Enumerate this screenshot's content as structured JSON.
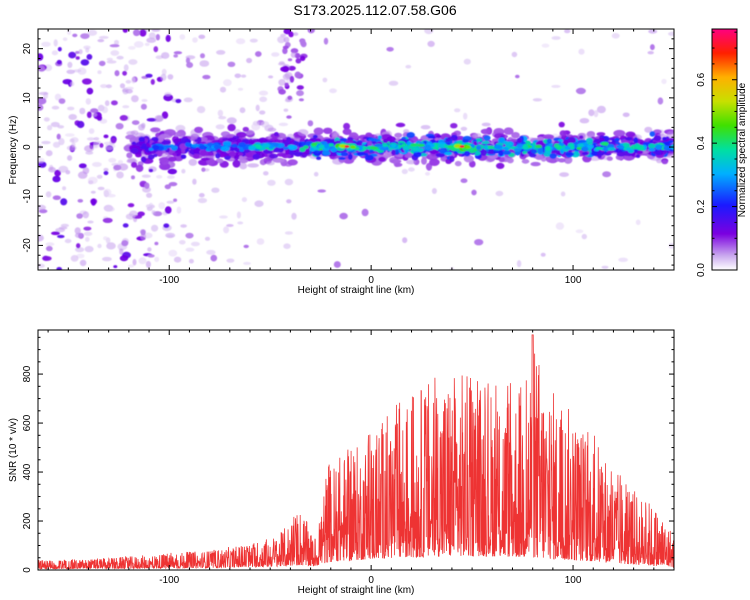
{
  "title": "S173.2025.112.07.58.G06",
  "chart_data": [
    {
      "type": "heatmap",
      "xlabel": "Height of straight line (km)",
      "ylabel": "Frequency (Hz)",
      "xlim": [
        -165,
        150
      ],
      "ylim": [
        -25,
        24
      ],
      "xticks": [
        -100,
        0,
        100
      ],
      "yticks": [
        -20,
        -10,
        0,
        10,
        20
      ],
      "colorbar": {
        "label": "Normalized spectral amplitude",
        "range": [
          0,
          0.76
        ],
        "ticks": [
          0.0,
          0.2,
          0.4,
          0.6
        ],
        "tick_labels": [
          "0.0",
          "0.2",
          "0.4",
          "0.6"
        ],
        "colormap": [
          "#ffffff",
          "#c9a8ee",
          "#7b00e0",
          "#1a1aff",
          "#00b0ff",
          "#00e0a0",
          "#40e000",
          "#c8e000",
          "#ffb000",
          "#ff2000",
          "#ff0080"
        ]
      },
      "description_values": {
        "signal_center_hz": 0,
        "signal_halfwidth_hz": 3,
        "peak_heights_km": [
          -12,
          45
        ],
        "peak_amplitude": 0.72
      }
    },
    {
      "type": "line",
      "xlabel": "Height of straight line (km)",
      "ylabel": "SNR (10 * v/v)",
      "xlim": [
        -165,
        150
      ],
      "ylim": [
        0,
        980
      ],
      "xticks": [
        -100,
        0,
        100
      ],
      "yticks": [
        0,
        200,
        400,
        600,
        800
      ],
      "color": "#ee3333",
      "envelope": {
        "x": [
          -165,
          -140,
          -120,
          -100,
          -80,
          -60,
          -45,
          -35,
          -28,
          -22,
          -15,
          -5,
          5,
          15,
          25,
          35,
          45,
          55,
          65,
          75,
          80,
          90,
          100,
          110,
          120,
          130,
          140,
          150
        ],
        "base": [
          20,
          22,
          25,
          30,
          35,
          45,
          60,
          80,
          60,
          120,
          150,
          170,
          190,
          200,
          210,
          220,
          230,
          225,
          220,
          210,
          205,
          180,
          160,
          140,
          110,
          90,
          70,
          50
        ],
        "peak": [
          40,
          45,
          55,
          70,
          80,
          110,
          150,
          260,
          120,
          420,
          480,
          520,
          620,
          700,
          760,
          830,
          820,
          770,
          760,
          780,
          960,
          750,
          650,
          560,
          420,
          330,
          270,
          160
        ]
      }
    }
  ]
}
